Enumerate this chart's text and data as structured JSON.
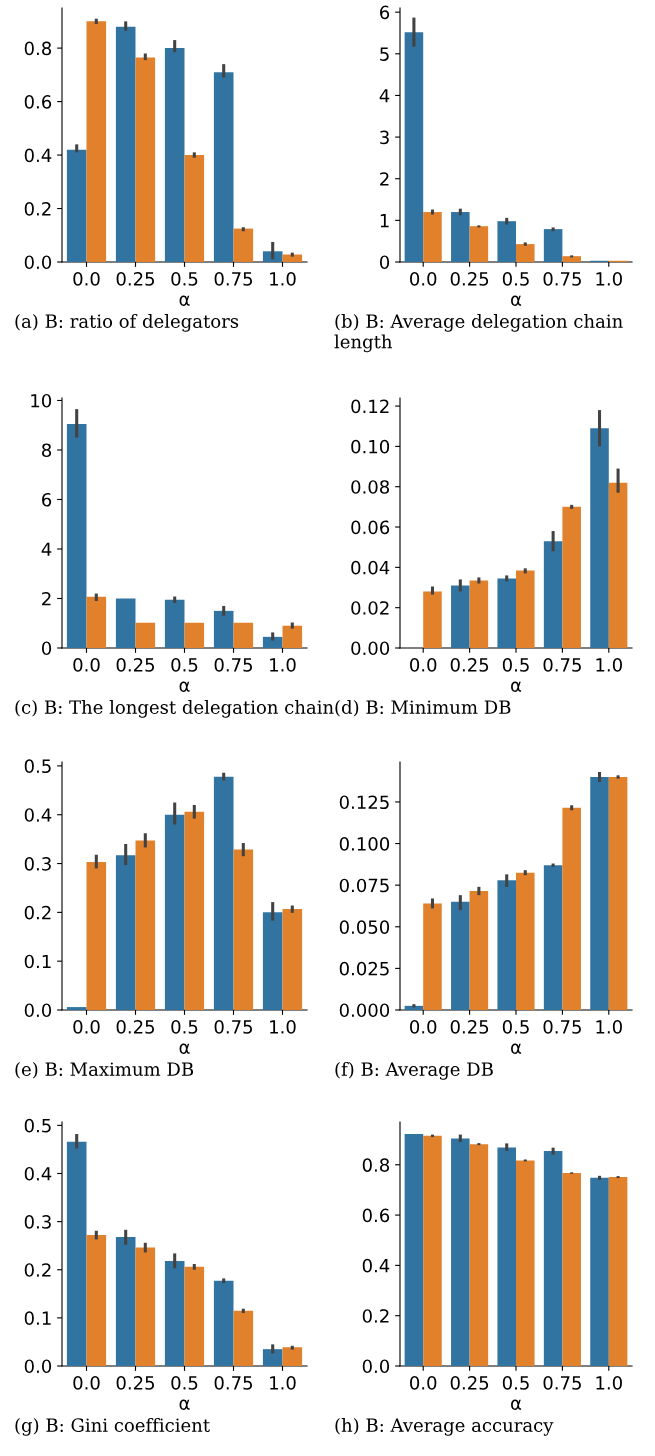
{
  "chart_data": [
    {
      "type": "bar",
      "title": "(a) B: ratio of delegators",
      "xlabel": "α",
      "categories": [
        "0.0",
        "0.25",
        "0.5",
        "0.75",
        "1.0"
      ],
      "ylim": [
        0,
        0.95
      ],
      "yticks": [
        {
          "value": 0,
          "label": "0.0"
        },
        0.2,
        0.4,
        0.6,
        0.8
      ],
      "grid": false,
      "legend": false,
      "series": [
        {
          "color": "#3274a1",
          "values": [
            0.42,
            0.88,
            0.8,
            0.71,
            0.04
          ],
          "errors": [
            [
              0.41,
              0.44
            ],
            [
              0.865,
              0.9
            ],
            [
              0.785,
              0.83
            ],
            [
              0.69,
              0.74
            ],
            [
              0.01,
              0.075
            ]
          ]
        },
        {
          "color": "#e1812c",
          "values": [
            0.9,
            0.765,
            0.4,
            0.125,
            0.028
          ],
          "errors": [
            [
              0.89,
              0.91
            ],
            [
              0.755,
              0.78
            ],
            [
              0.39,
              0.41
            ],
            [
              0.115,
              0.13
            ],
            [
              0.02,
              0.035
            ]
          ]
        }
      ]
    },
    {
      "type": "bar",
      "title": "(b) B: Average delegation chain length",
      "xlabel": "α",
      "categories": [
        "0.0",
        "0.25",
        "0.5",
        "0.75",
        "1.0"
      ],
      "ylim": [
        0,
        6.1
      ],
      "yticks": [
        0,
        1,
        2,
        3,
        4,
        5,
        6
      ],
      "grid": false,
      "legend": false,
      "series": [
        {
          "color": "#3274a1",
          "values": [
            5.52,
            1.2,
            0.98,
            0.79,
            0.03
          ],
          "errors": [
            [
              5.17,
              5.87
            ],
            [
              1.12,
              1.28
            ],
            [
              0.9,
              1.06
            ],
            [
              0.74,
              0.83
            ],
            null
          ]
        },
        {
          "color": "#e1812c",
          "values": [
            1.2,
            0.86,
            0.43,
            0.14,
            0.03
          ],
          "errors": [
            [
              1.14,
              1.26
            ],
            [
              0.83,
              0.88
            ],
            [
              0.39,
              0.47
            ],
            [
              0.11,
              0.16
            ],
            null
          ]
        }
      ]
    },
    {
      "type": "bar",
      "title": "(c) B: The longest delegation chain",
      "xlabel": "α",
      "categories": [
        "0.0",
        "0.25",
        "0.5",
        "0.75",
        "1.0"
      ],
      "ylim": [
        0,
        10.1
      ],
      "yticks": [
        0,
        2,
        4,
        6,
        8,
        10
      ],
      "grid": false,
      "legend": false,
      "series": [
        {
          "color": "#3274a1",
          "values": [
            9.05,
            2.0,
            1.95,
            1.5,
            0.45
          ],
          "errors": [
            [
              8.5,
              9.65
            ],
            null,
            [
              1.82,
              2.08
            ],
            [
              1.3,
              1.7
            ],
            [
              0.3,
              0.63
            ]
          ]
        },
        {
          "color": "#e1812c",
          "values": [
            2.07,
            1.02,
            1.02,
            1.02,
            0.9
          ],
          "errors": [
            [
              1.9,
              2.2
            ],
            null,
            null,
            null,
            [
              0.78,
              1.03
            ]
          ]
        }
      ]
    },
    {
      "type": "bar",
      "title": "(d) B: Minimum DB",
      "xlabel": "α",
      "categories": [
        "0.0",
        "0.25",
        "0.5",
        "0.75",
        "1.0"
      ],
      "ylim": [
        0,
        0.124
      ],
      "yticks": [
        {
          "value": 0,
          "label": "0.00"
        },
        {
          "value": 0.02,
          "label": "0.02"
        },
        {
          "value": 0.04,
          "label": "0.04"
        },
        {
          "value": 0.06,
          "label": "0.06"
        },
        {
          "value": 0.08,
          "label": "0.08"
        },
        {
          "value": 0.1,
          "label": "0.10"
        },
        {
          "value": 0.12,
          "label": "0.12"
        }
      ],
      "grid": false,
      "legend": false,
      "series": [
        {
          "color": "#3274a1",
          "values": [
            null,
            0.031,
            0.0345,
            0.053,
            0.109
          ],
          "errors": [
            null,
            [
              0.028,
              0.034
            ],
            [
              0.033,
              0.036
            ],
            [
              0.048,
              0.058
            ],
            [
              0.1,
              0.118
            ]
          ]
        },
        {
          "color": "#e1812c",
          "values": [
            0.028,
            0.0335,
            0.0385,
            0.07,
            0.082
          ],
          "errors": [
            [
              0.0265,
              0.0305
            ],
            [
              0.032,
              0.035
            ],
            [
              0.037,
              0.0395
            ],
            [
              0.069,
              0.071
            ],
            [
              0.077,
              0.089
            ]
          ]
        }
      ]
    },
    {
      "type": "bar",
      "title": "(e) B: Maximum DB",
      "xlabel": "α",
      "categories": [
        "0.0",
        "0.25",
        "0.5",
        "0.75",
        "1.0"
      ],
      "ylim": [
        0,
        0.508
      ],
      "yticks": [
        {
          "value": 0,
          "label": "0.0"
        },
        0.1,
        0.2,
        0.3,
        0.4,
        0.5
      ],
      "grid": false,
      "legend": false,
      "series": [
        {
          "color": "#3274a1",
          "values": [
            0.006,
            0.317,
            0.4,
            0.478,
            0.2
          ],
          "errors": [
            null,
            [
              0.297,
              0.34
            ],
            [
              0.38,
              0.425
            ],
            [
              0.47,
              0.486
            ],
            [
              0.183,
              0.221
            ]
          ]
        },
        {
          "color": "#e1812c",
          "values": [
            0.303,
            0.347,
            0.406,
            0.329,
            0.207
          ],
          "errors": [
            [
              0.29,
              0.318
            ],
            [
              0.333,
              0.362
            ],
            [
              0.392,
              0.42
            ],
            [
              0.315,
              0.342
            ],
            [
              0.199,
              0.214
            ]
          ]
        }
      ]
    },
    {
      "type": "bar",
      "title": "(f) B: Average DB",
      "xlabel": "α",
      "categories": [
        "0.0",
        "0.25",
        "0.5",
        "0.75",
        "1.0"
      ],
      "ylim": [
        0,
        0.149
      ],
      "yticks": [
        {
          "value": 0,
          "label": "0.000"
        },
        0.025,
        {
          "value": 0.05,
          "label": "0.050"
        },
        0.075,
        {
          "value": 0.1,
          "label": "0.100"
        },
        0.125
      ],
      "grid": false,
      "legend": false,
      "series": [
        {
          "color": "#3274a1",
          "values": [
            0.0025,
            0.065,
            0.078,
            0.087,
            0.14
          ],
          "errors": [
            [
              0.0015,
              0.0035
            ],
            [
              0.06,
              0.069
            ],
            [
              0.074,
              0.0815
            ],
            [
              0.086,
              0.088
            ],
            [
              0.137,
              0.143
            ]
          ]
        },
        {
          "color": "#e1812c",
          "values": [
            0.064,
            0.0715,
            0.0825,
            0.1215,
            0.14
          ],
          "errors": [
            [
              0.061,
              0.067
            ],
            [
              0.069,
              0.074
            ],
            [
              0.081,
              0.084
            ],
            [
              0.12,
              0.123
            ],
            [
              0.139,
              0.141
            ]
          ]
        }
      ]
    },
    {
      "type": "bar",
      "title": "(g) B: Gini coefficient",
      "xlabel": "α",
      "categories": [
        "0.0",
        "0.25",
        "0.5",
        "0.75",
        "1.0"
      ],
      "ylim": [
        0,
        0.507
      ],
      "yticks": [
        {
          "value": 0,
          "label": "0.0"
        },
        0.1,
        0.2,
        0.3,
        0.4,
        0.5
      ],
      "grid": false,
      "legend": false,
      "series": [
        {
          "color": "#3274a1",
          "values": [
            0.466,
            0.268,
            0.218,
            0.177,
            0.035
          ],
          "errors": [
            [
              0.452,
              0.482
            ],
            [
              0.252,
              0.283
            ],
            [
              0.203,
              0.234
            ],
            [
              0.172,
              0.182
            ],
            [
              0.026,
              0.045
            ]
          ]
        },
        {
          "color": "#e1812c",
          "values": [
            0.272,
            0.246,
            0.206,
            0.115,
            0.039
          ],
          "errors": [
            [
              0.263,
              0.281
            ],
            [
              0.236,
              0.256
            ],
            [
              0.2,
              0.212
            ],
            [
              0.11,
              0.119
            ],
            [
              0.034,
              0.042
            ]
          ]
        }
      ]
    },
    {
      "type": "bar",
      "title": "(h) B: Average accuracy",
      "xlabel": "α",
      "categories": [
        "0.0",
        "0.25",
        "0.5",
        "0.75",
        "1.0"
      ],
      "ylim": [
        0,
        0.97
      ],
      "yticks": [
        {
          "value": 0,
          "label": "0.0"
        },
        0.2,
        0.4,
        0.6,
        0.8
      ],
      "grid": false,
      "legend": false,
      "series": [
        {
          "color": "#3274a1",
          "values": [
            0.922,
            0.904,
            0.869,
            0.855,
            0.748
          ],
          "errors": [
            null,
            [
              0.89,
              0.92
            ],
            [
              0.855,
              0.885
            ],
            [
              0.84,
              0.868
            ],
            [
              0.74,
              0.756
            ]
          ]
        },
        {
          "color": "#e1812c",
          "values": [
            0.915,
            0.882,
            0.817,
            0.767,
            0.751
          ],
          "errors": [
            [
              0.91,
              0.92
            ],
            [
              0.878,
              0.886
            ],
            [
              0.813,
              0.821
            ],
            [
              0.764,
              0.77
            ],
            [
              0.747,
              0.755
            ]
          ]
        }
      ]
    }
  ]
}
